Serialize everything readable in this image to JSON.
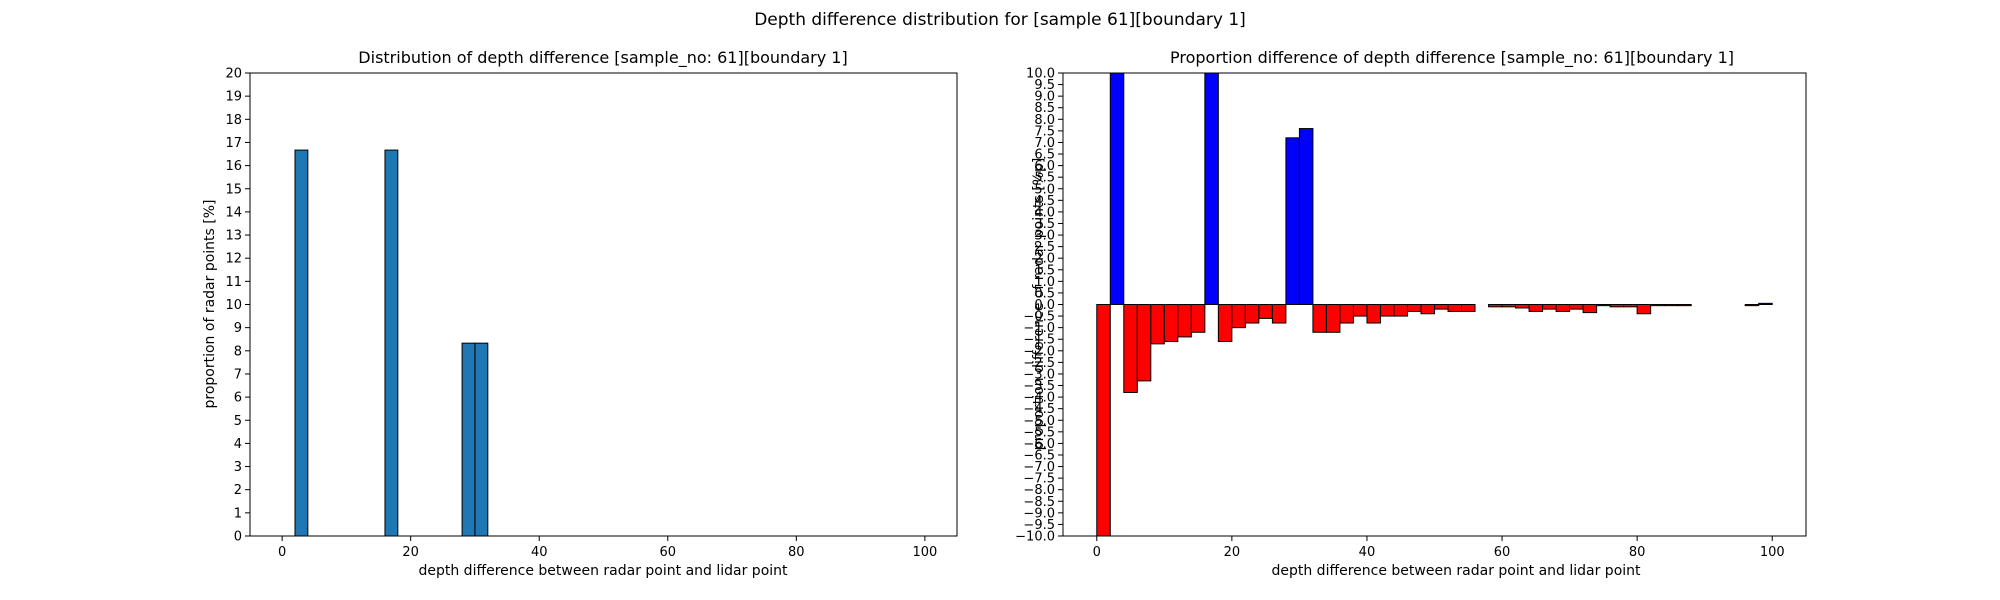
{
  "figure": {
    "suptitle": "Depth difference distribution for [sample 61][boundary 1]"
  },
  "chart_data": [
    {
      "type": "bar",
      "title": "Distribution of depth difference [sample_no: 61][boundary 1]",
      "xlabel": "depth difference between radar point and lidar point",
      "ylabel": "proportion of radar points [%]",
      "xlim": [
        -5,
        105
      ],
      "ylim": [
        0,
        20
      ],
      "xticks": [
        0,
        20,
        40,
        60,
        80,
        100
      ],
      "yticks": [
        0,
        1,
        2,
        3,
        4,
        5,
        6,
        7,
        8,
        9,
        10,
        11,
        12,
        13,
        14,
        15,
        16,
        17,
        18,
        19,
        20
      ],
      "bin_width": 2,
      "color": "#1f77b4",
      "edge_color": "#000000",
      "bins_start": [
        2,
        16,
        28,
        30
      ],
      "values": [
        16.67,
        16.67,
        8.33,
        8.33
      ]
    },
    {
      "type": "bar",
      "title": "Proportion difference of depth difference [sample_no: 61][boundary 1]",
      "xlabel": "depth difference between radar point and lidar point",
      "ylabel": "proportion difference of radar points [%p]",
      "xlim": [
        -5,
        105
      ],
      "ylim": [
        -10,
        10
      ],
      "xticks": [
        0,
        20,
        40,
        60,
        80,
        100
      ],
      "ytick_step": 0.5,
      "bin_width": 2,
      "positive_color": "#0000ff",
      "negative_color": "#ff0000",
      "edge_color": "#000000",
      "bins_start": [
        0,
        2,
        4,
        6,
        8,
        10,
        12,
        14,
        16,
        18,
        20,
        22,
        24,
        26,
        28,
        30,
        32,
        34,
        36,
        38,
        40,
        42,
        44,
        46,
        48,
        50,
        52,
        54,
        56,
        58,
        60,
        62,
        64,
        66,
        68,
        70,
        72,
        74,
        76,
        78,
        80,
        82,
        84,
        86,
        88,
        90,
        92,
        94,
        96,
        98
      ],
      "values": [
        -10.0,
        10.0,
        -3.8,
        -3.3,
        -1.7,
        -1.6,
        -1.4,
        -1.2,
        10.0,
        -1.6,
        -1.0,
        -0.8,
        -0.6,
        -0.8,
        7.2,
        7.6,
        -1.2,
        -1.2,
        -0.8,
        -0.5,
        -0.8,
        -0.5,
        -0.5,
        -0.3,
        -0.4,
        -0.2,
        -0.3,
        -0.3,
        0.0,
        -0.1,
        -0.1,
        -0.15,
        -0.3,
        -0.2,
        -0.3,
        -0.2,
        -0.35,
        -0.05,
        -0.1,
        -0.1,
        -0.4,
        -0.05,
        -0.05,
        -0.05,
        0.0,
        0.0,
        0.0,
        0.0,
        -0.05,
        0.05
      ]
    }
  ]
}
